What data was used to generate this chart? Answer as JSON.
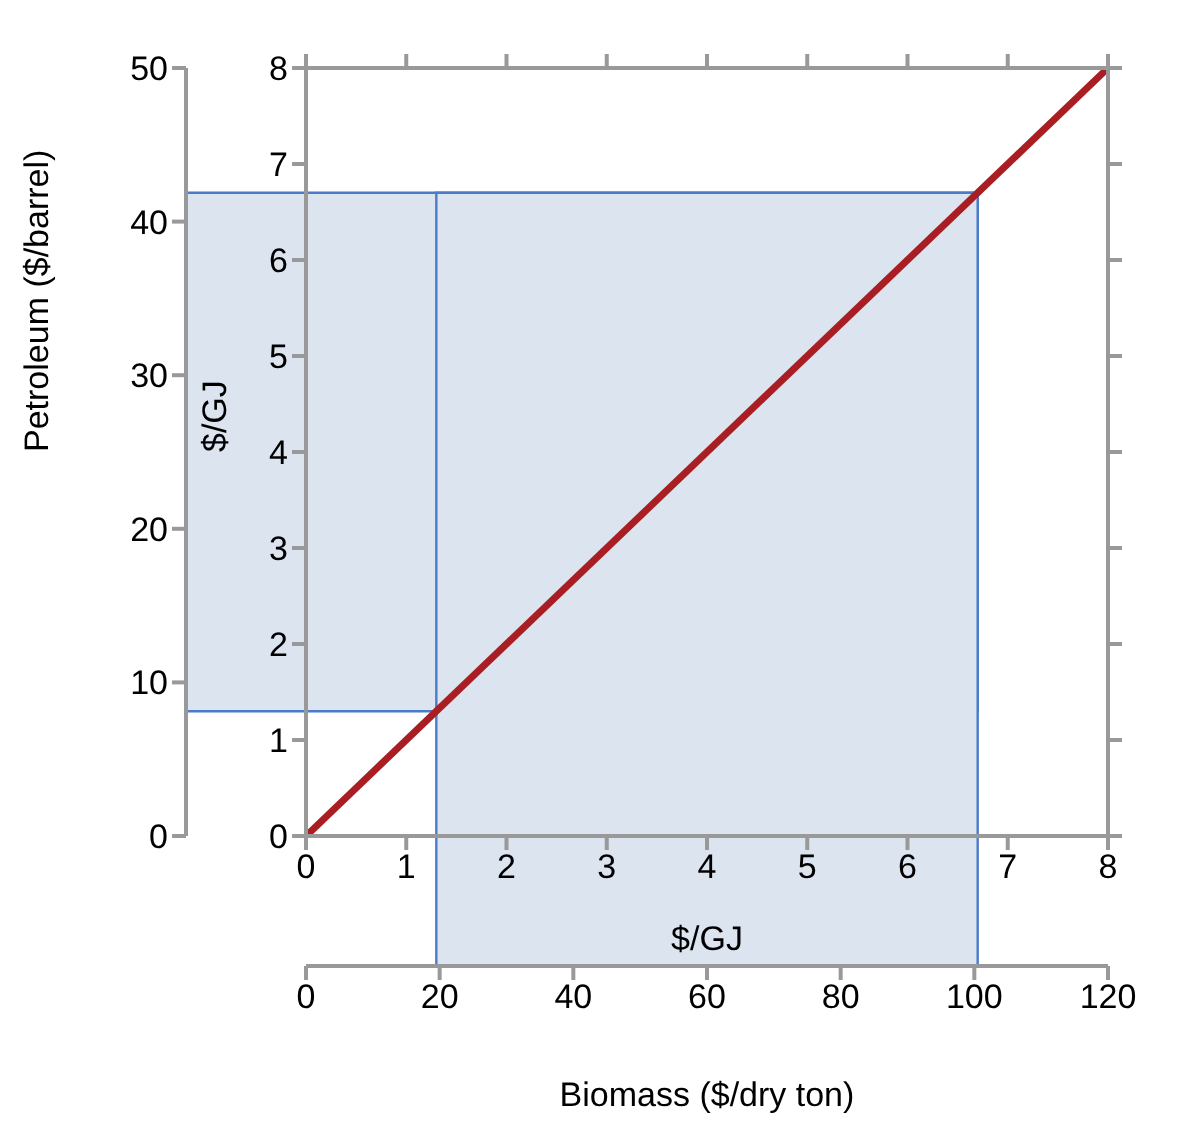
{
  "chart_data": {
    "type": "line",
    "xlabel": "$/GJ",
    "ylabel": "$/GJ",
    "x": [
      0,
      8
    ],
    "series": [
      {
        "color": "#a81e22",
        "values": [
          0,
          8
        ]
      }
    ],
    "xlim": [
      0,
      8
    ],
    "xticks": [
      0,
      1,
      2,
      3,
      4,
      5,
      6,
      7,
      8
    ],
    "ylim": [
      0,
      8
    ],
    "yticks": [
      0,
      1,
      2,
      3,
      4,
      5,
      6,
      7,
      8
    ],
    "x2label": "Biomass ($/dry ton)",
    "x2lim": [
      0,
      120
    ],
    "x2ticks": [
      0,
      20,
      40,
      60,
      80,
      100,
      120
    ],
    "y2label": "Petroleum ($/barrel)",
    "y2lim": [
      0,
      50
    ],
    "y2ticks": [
      0,
      10,
      20,
      30,
      40,
      50
    ],
    "bands": [
      {
        "axis": "y",
        "from": 1.3,
        "to": 6.7,
        "color": "#dce4f0"
      },
      {
        "axis": "x",
        "from": 1.3,
        "to": 6.7,
        "color": "#dce4f0"
      }
    ],
    "marker": "none"
  }
}
